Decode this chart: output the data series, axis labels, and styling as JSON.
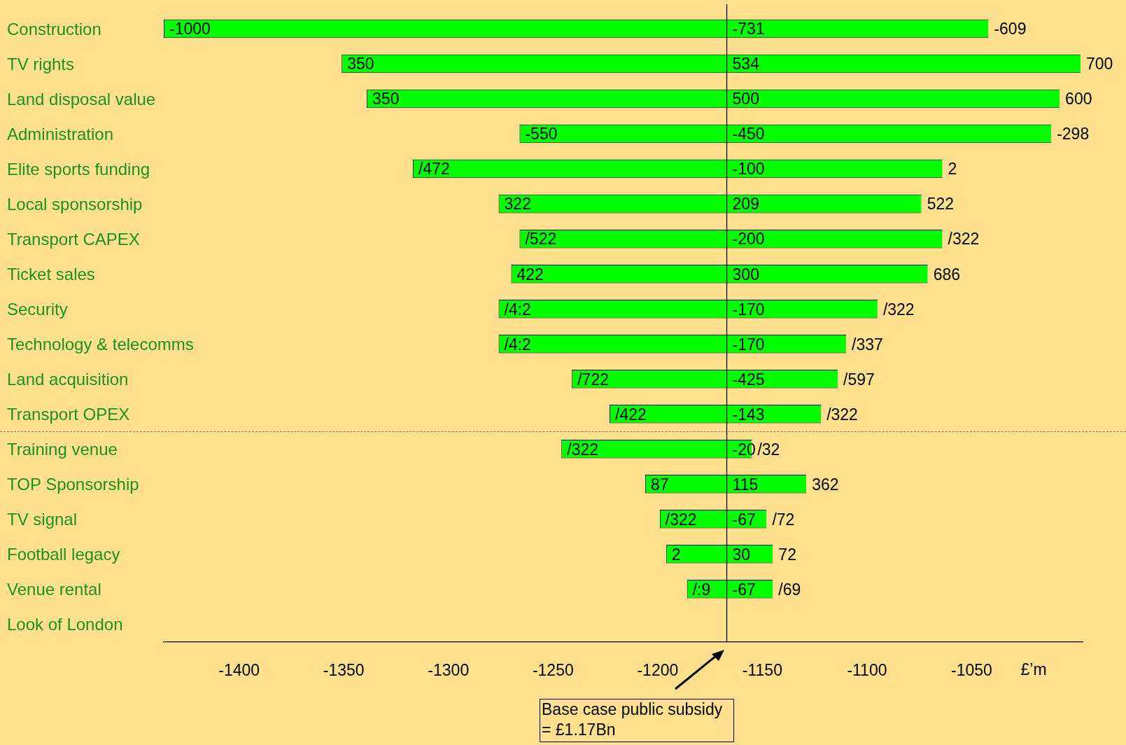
{
  "chart_data": {
    "type": "bar",
    "orientation": "horizontal",
    "xlabel": "£’m",
    "categories": [
      "Construction",
      "TV rights",
      "Land disposal value",
      "Administration",
      "Elite sports funding",
      "Local sponsorship",
      "Transport CAPEX",
      "Ticket sales",
      "Security",
      "Technology & telecomms",
      "Land acquisition",
      "Transport OPEX",
      "Training venue",
      "TOP Sponsorship",
      "TV signal",
      "Football legacy",
      "Venue rental",
      "Look of London"
    ],
    "base": [
      -1436,
      -1351,
      -1339,
      -1266,
      -1317,
      -1276,
      -1266,
      -1270,
      -1276,
      -1276,
      -1241,
      -1223,
      -1246,
      -1206,
      -1199,
      -1196,
      -1186,
      null
    ],
    "values": [
      394,
      353,
      331,
      254,
      253,
      202,
      202,
      199,
      181,
      166,
      127,
      101,
      91,
      77,
      51,
      51,
      41,
      null
    ],
    "color": "#00ff00",
    "xlim": [
      -1436,
      -997
    ],
    "xticks": [
      -1400,
      -1350,
      -1300,
      -1250,
      -1200,
      -1150,
      -1100,
      -1050
    ],
    "grid": false,
    "legend": false,
    "ref_lines": [
      {
        "axis": "x",
        "value": -1167
      }
    ],
    "annotations": [
      "Base case public subsidy = £1.17Bn",
      {
        "text": "-1000",
        "x": -1436,
        "y": "Construction"
      },
      {
        "text": "-731",
        "x": -1167,
        "y": "Construction"
      },
      {
        "text": "-609",
        "x": -1042,
        "y": "Construction"
      },
      {
        "text": "350",
        "x": -1351,
        "y": "TV rights"
      },
      {
        "text": "534",
        "x": -1167,
        "y": "TV rights"
      },
      {
        "text": "700",
        "x": -998,
        "y": "TV rights"
      },
      {
        "text": "350",
        "x": -1339,
        "y": "Land disposal value"
      },
      {
        "text": "500",
        "x": -1167,
        "y": "Land disposal value"
      },
      {
        "text": "600",
        "x": -1008,
        "y": "Land disposal value"
      },
      {
        "text": "-550",
        "x": -1266,
        "y": "Administration"
      },
      {
        "text": "-450",
        "x": -1167,
        "y": "Administration"
      },
      {
        "text": "-298",
        "x": -1012,
        "y": "Administration"
      },
      {
        "text": "/472",
        "x": -1317,
        "y": "Elite sports funding"
      },
      {
        "text": "-100",
        "x": -1167,
        "y": "Elite sports funding"
      },
      {
        "text": "2",
        "x": -1064,
        "y": "Elite sports funding"
      },
      {
        "text": "322",
        "x": -1276,
        "y": "Local sponsorship"
      },
      {
        "text": "209",
        "x": -1167,
        "y": "Local sponsorship"
      },
      {
        "text": "522",
        "x": -1074,
        "y": "Local sponsorship"
      },
      {
        "text": "/522",
        "x": -1266,
        "y": "Transport CAPEX"
      },
      {
        "text": "-200",
        "x": -1167,
        "y": "Transport CAPEX"
      },
      {
        "text": "/322",
        "x": -1064,
        "y": "Transport CAPEX"
      },
      {
        "text": "422",
        "x": -1270,
        "y": "Ticket sales"
      },
      {
        "text": "300",
        "x": -1167,
        "y": "Ticket sales"
      },
      {
        "text": "686",
        "x": -1071,
        "y": "Ticket sales"
      },
      {
        "text": "/4:2",
        "x": -1276,
        "y": "Security"
      },
      {
        "text": "-170",
        "x": -1167,
        "y": "Security"
      },
      {
        "text": "/322",
        "x": -1095,
        "y": "Security"
      },
      {
        "text": "/4:2",
        "x": -1276,
        "y": "Technology & telecomms"
      },
      {
        "text": "-170",
        "x": -1167,
        "y": "Technology & telecomms"
      },
      {
        "text": "/337",
        "x": -1110,
        "y": "Technology & telecomms"
      },
      {
        "text": "/722",
        "x": -1241,
        "y": "Land acquisition"
      },
      {
        "text": "-425",
        "x": -1167,
        "y": "Land acquisition"
      },
      {
        "text": "/597",
        "x": -1114,
        "y": "Land acquisition"
      },
      {
        "text": "/422",
        "x": -1223,
        "y": "Transport OPEX"
      },
      {
        "text": "-143",
        "x": -1167,
        "y": "Transport OPEX"
      },
      {
        "text": "/322",
        "x": -1122,
        "y": "Transport OPEX"
      },
      {
        "text": "/322",
        "x": -1246,
        "y": "Training venue"
      },
      {
        "text": "-20",
        "x": -1167,
        "y": "Training venue"
      },
      {
        "text": "/32",
        "x": -1155,
        "y": "Training venue"
      },
      {
        "text": "87",
        "x": -1206,
        "y": "TOP Sponsorship"
      },
      {
        "text": "115",
        "x": -1167,
        "y": "TOP Sponsorship"
      },
      {
        "text": "362",
        "x": -1129,
        "y": "TOP Sponsorship"
      },
      {
        "text": "/322",
        "x": -1199,
        "y": "TV signal"
      },
      {
        "text": "-67",
        "x": -1167,
        "y": "TV signal"
      },
      {
        "text": "/72",
        "x": -1148,
        "y": "TV signal"
      },
      {
        "text": "2",
        "x": -1196,
        "y": "Football legacy"
      },
      {
        "text": "30",
        "x": -1167,
        "y": "Football legacy"
      },
      {
        "text": "72",
        "x": -1145,
        "y": "Football legacy"
      },
      {
        "text": "/:9",
        "x": -1186,
        "y": "Venue rental"
      },
      {
        "text": "-67",
        "x": -1167,
        "y": "Venue rental"
      },
      {
        "text": "/69",
        "x": -1145,
        "y": "Venue rental"
      }
    ]
  }
}
